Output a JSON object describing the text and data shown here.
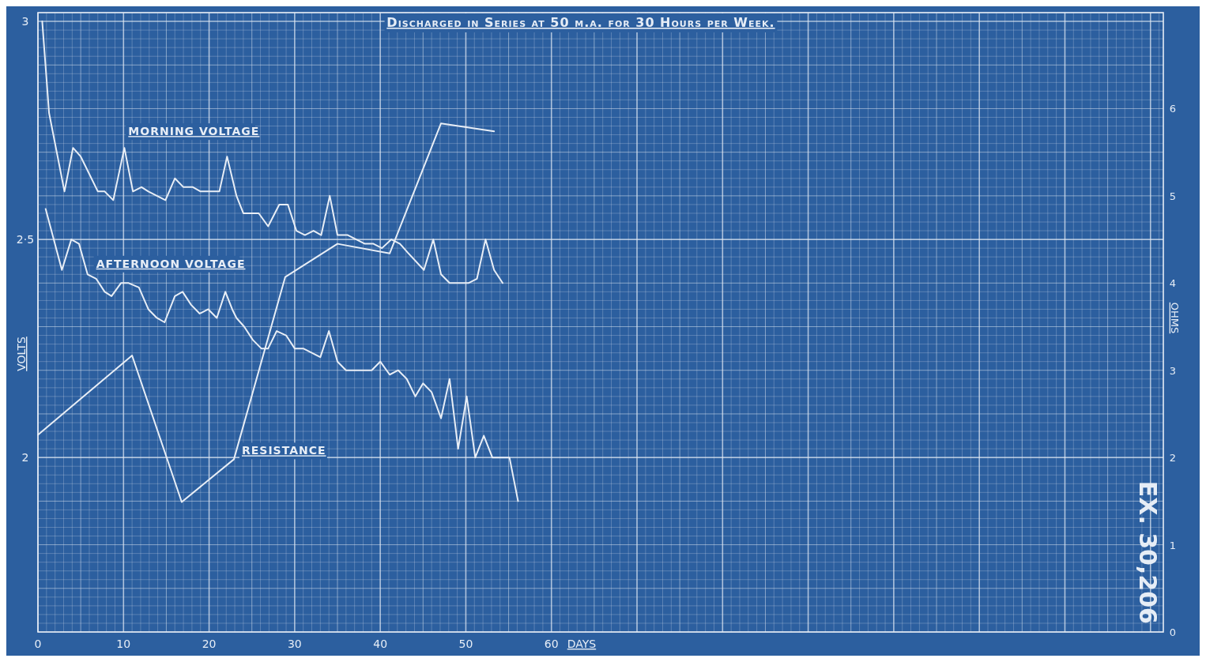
{
  "chart_data": {
    "type": "line",
    "subtitle": "Discharged in Series at 50 m.a. for 30 Hours per Week.",
    "xlabel": "DAYS",
    "ylabel": "VOLTS",
    "y2label": "OHMS",
    "annotations": [
      "EX. 30,206"
    ],
    "xlim": [
      0,
      131.5
    ],
    "xticks": [
      0,
      10,
      20,
      30,
      40,
      50,
      60
    ],
    "ylim": [
      1.6,
      3.02
    ],
    "yticks": [
      2,
      {
        "value": 2.5,
        "label": "2·5"
      },
      3
    ],
    "y2lim": [
      0,
      7.1
    ],
    "y2ticks": [
      0,
      1,
      2,
      3,
      4,
      5,
      6
    ],
    "grid": true,
    "legend": false,
    "marker": "none",
    "line_style": "solid",
    "series": [
      {
        "name": "MORNING VOLTAGE",
        "color": "#e8eef6",
        "x": [
          0.5,
          1.3,
          3.1,
          4.1,
          5,
          6,
          7,
          7.8,
          8.8,
          10.1,
          11.1,
          12.1,
          12.9,
          13.9,
          14.9,
          16,
          17,
          18.1,
          19,
          21.2,
          22.1,
          23.2,
          24,
          25.8,
          26.9,
          28.2,
          29.2,
          30.2,
          31.2,
          32.2,
          33.1,
          34.1,
          35,
          36.2,
          37.2,
          38.2,
          39.2,
          40.2,
          41.3,
          42.3,
          43.2,
          45.1,
          46.2,
          47.1,
          48.1,
          50.3,
          51.3,
          52.3,
          53.3,
          54.3
        ],
        "values": [
          3.0,
          2.79,
          2.61,
          2.71,
          2.69,
          2.65,
          2.61,
          2.61,
          2.59,
          2.71,
          2.61,
          2.62,
          2.61,
          2.6,
          2.59,
          2.64,
          2.62,
          2.62,
          2.61,
          2.61,
          2.69,
          2.6,
          2.56,
          2.56,
          2.53,
          2.58,
          2.58,
          2.52,
          2.51,
          2.52,
          2.51,
          2.6,
          2.51,
          2.51,
          2.5,
          2.49,
          2.49,
          2.48,
          2.5,
          2.49,
          2.47,
          2.43,
          2.5,
          2.42,
          2.4,
          2.4,
          2.41,
          2.5,
          2.43,
          2.4
        ]
      },
      {
        "name": "AFTERNOON VOLTAGE",
        "color": "#e8eef6",
        "x": [
          0.9,
          2.8,
          3.9,
          4.8,
          5.8,
          6.8,
          7.8,
          8.6,
          9.7,
          10.6,
          11.8,
          12.9,
          13.9,
          14.8,
          16,
          16.9,
          17.9,
          18.9,
          19.9,
          20.9,
          21.9,
          22.7,
          23.2,
          24.1,
          25.1,
          26.1,
          26.9,
          27.9,
          29,
          30,
          31,
          32,
          33,
          34,
          35,
          36,
          39,
          40,
          41.1,
          42.1,
          43.1,
          44.1,
          45,
          46,
          47.1,
          48.1,
          49.1,
          50.1,
          51.1,
          52.1,
          53.1,
          55.1,
          56.1
        ],
        "values": [
          2.57,
          2.43,
          2.5,
          2.49,
          2.42,
          2.41,
          2.38,
          2.37,
          2.4,
          2.4,
          2.39,
          2.34,
          2.32,
          2.31,
          2.37,
          2.38,
          2.35,
          2.33,
          2.34,
          2.32,
          2.38,
          2.34,
          2.32,
          2.3,
          2.27,
          2.25,
          2.25,
          2.29,
          2.28,
          2.25,
          2.25,
          2.24,
          2.23,
          2.29,
          2.22,
          2.2,
          2.2,
          2.22,
          2.19,
          2.2,
          2.18,
          2.14,
          2.17,
          2.15,
          2.09,
          2.18,
          2.02,
          2.14,
          2.0,
          2.05,
          2.0,
          2.0,
          1.9
        ]
      },
      {
        "name": "RESISTANCE",
        "color": "#e8eef6",
        "axis": "y2",
        "x": [
          0,
          11,
          16.8,
          22.9,
          28.9,
          35,
          41.1,
          47.1,
          53.3
        ],
        "values": [
          2.26,
          3.17,
          1.49,
          1.98,
          4.07,
          4.45,
          4.34,
          5.83,
          5.74
        ]
      }
    ]
  }
}
